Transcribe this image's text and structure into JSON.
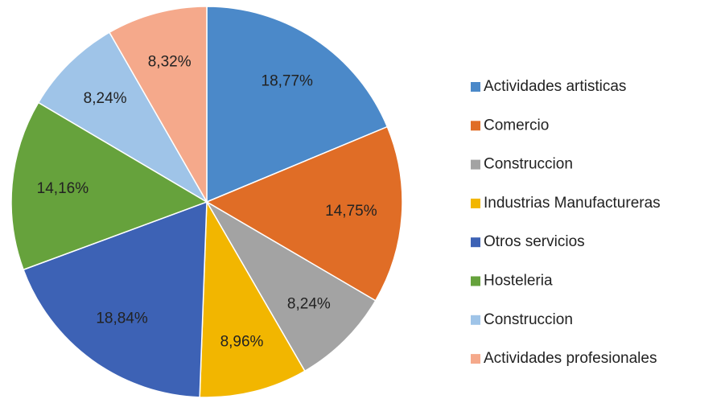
{
  "chart_data": {
    "type": "pie",
    "categories": [
      "Actividades artisticas",
      "Comercio",
      "Construccion",
      "Industrias Manufactureras",
      "Otros servicios",
      "Hosteleria",
      "Construccion",
      "Actividades profesionales"
    ],
    "values": [
      18.77,
      14.75,
      8.24,
      8.96,
      18.84,
      14.16,
      8.24,
      8.32
    ],
    "value_labels": [
      "18,77%",
      "14,75%",
      "8,24%",
      "8,96%",
      "18,84%",
      "14,16%",
      "8,24%",
      "8,32%"
    ],
    "colors": [
      "#4b89c9",
      "#e06d26",
      "#a3a3a3",
      "#f2b600",
      "#3d62b5",
      "#66a23c",
      "#9fc4e8",
      "#f5a98b"
    ],
    "legend": "right"
  }
}
